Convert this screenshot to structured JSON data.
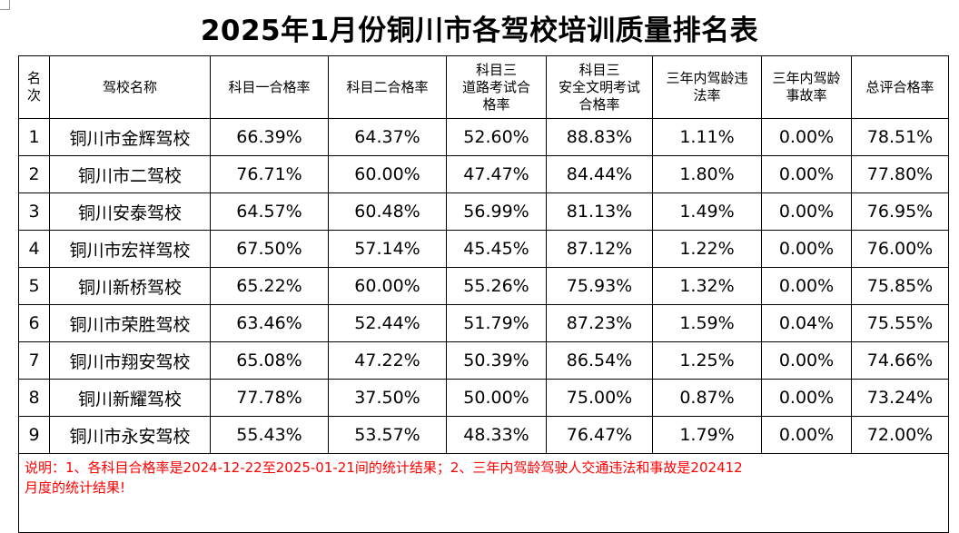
{
  "title": "2025年1月份铜川市各驾校培训质量排名表",
  "headers": {
    "rank_line1": "名",
    "rank_line2": "次",
    "school": "驾校名称",
    "subject1": "科目一合格率",
    "subject2": "科目二合格率",
    "subject3_road_l1": "科目三",
    "subject3_road_l2": "道路考试合",
    "subject3_road_l3": "格率",
    "subject3_safe_l1": "科目三",
    "subject3_safe_l2": "安全文明考试",
    "subject3_safe_l3": "合格率",
    "violation_l1": "三年内驾龄违",
    "violation_l2": "法率",
    "accident_l1": "三年内驾龄",
    "accident_l2": "事故率",
    "overall": "总评合格率"
  },
  "rows": [
    {
      "rank": "1",
      "name": "铜川市金辉驾校",
      "s1": "66.39%",
      "s2": "64.37%",
      "s3road": "52.60%",
      "s3safe": "88.83%",
      "violation": "1.11%",
      "accident": "0.00%",
      "overall": "78.51%"
    },
    {
      "rank": "2",
      "name": "铜川市二驾校",
      "s1": "76.71%",
      "s2": "60.00%",
      "s3road": "47.47%",
      "s3safe": "84.44%",
      "violation": "1.80%",
      "accident": "0.00%",
      "overall": "77.80%"
    },
    {
      "rank": "3",
      "name": "铜川安泰驾校",
      "s1": "64.57%",
      "s2": "60.48%",
      "s3road": "56.99%",
      "s3safe": "81.13%",
      "violation": "1.49%",
      "accident": "0.00%",
      "overall": "76.95%"
    },
    {
      "rank": "4",
      "name": "铜川市宏祥驾校",
      "s1": "67.50%",
      "s2": "57.14%",
      "s3road": "45.45%",
      "s3safe": "87.12%",
      "violation": "1.22%",
      "accident": "0.00%",
      "overall": "76.00%"
    },
    {
      "rank": "5",
      "name": "铜川新桥驾校",
      "s1": "65.22%",
      "s2": "60.00%",
      "s3road": "55.26%",
      "s3safe": "75.93%",
      "violation": "1.32%",
      "accident": "0.00%",
      "overall": "75.85%"
    },
    {
      "rank": "6",
      "name": "铜川市荣胜驾校",
      "s1": "63.46%",
      "s2": "52.44%",
      "s3road": "51.79%",
      "s3safe": "87.23%",
      "violation": "1.59%",
      "accident": "0.04%",
      "overall": "75.55%"
    },
    {
      "rank": "7",
      "name": "铜川市翔安驾校",
      "s1": "65.08%",
      "s2": "47.22%",
      "s3road": "50.39%",
      "s3safe": "86.54%",
      "violation": "1.25%",
      "accident": "0.00%",
      "overall": "74.66%"
    },
    {
      "rank": "8",
      "name": "铜川新耀驾校",
      "s1": "77.78%",
      "s2": "37.50%",
      "s3road": "50.00%",
      "s3safe": "75.00%",
      "violation": "0.87%",
      "accident": "0.00%",
      "overall": "73.24%"
    },
    {
      "rank": "9",
      "name": "铜川市永安驾校",
      "s1": "55.43%",
      "s2": "53.57%",
      "s3road": "48.33%",
      "s3safe": "76.47%",
      "violation": "1.79%",
      "accident": "0.00%",
      "overall": "72.00%"
    }
  ],
  "note_line1": "说明：1、各科目合格率是2024-12-22至2025-01-21间的统计结果；2、三年内驾龄驾驶人交通违法和事故是202412",
  "note_line2": "月度的统计结果!",
  "colors": {
    "note": "#ff0000",
    "border": "#000000"
  }
}
